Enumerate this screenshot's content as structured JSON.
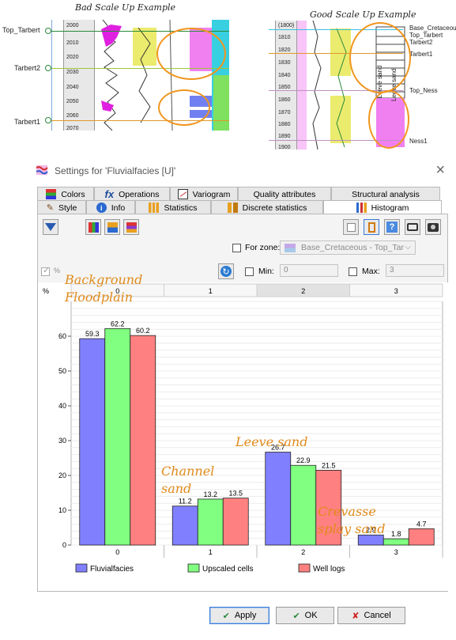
{
  "examples": {
    "bad": {
      "caption": "Bad Scale Up Example",
      "depths": [
        "2000",
        "2010",
        "2020",
        "2030",
        "2040",
        "2050",
        "2060",
        "2070"
      ],
      "markers": [
        "Top_Tarbert",
        "Tarbert2",
        "Tarbert1"
      ]
    },
    "good": {
      "caption": "Good Scale Up Example",
      "depths": [
        "(1800)",
        "1810",
        "1820",
        "1830",
        "1840",
        "1850",
        "1860",
        "1870",
        "1880",
        "1890",
        "1900"
      ],
      "markers": [
        "Base_Cretaceous",
        "Top_Tarbert",
        "Tarbert2",
        "Tarbert1",
        "Top_Ness",
        "Ness1"
      ],
      "track_labels": [
        "Leeve sand",
        "Leeve sand"
      ]
    }
  },
  "dialog": {
    "title": "Settings for 'Fluvialfacies [U]'",
    "tabs_row1": [
      "Colors",
      "Operations",
      "Variogram",
      "Quality attributes",
      "Structural analysis"
    ],
    "tabs_row2": [
      "Style",
      "Info",
      "Statistics",
      "Discrete statistics",
      "Histogram"
    ],
    "active_tab": "Histogram",
    "for_zone_label": "For zone:",
    "zone_value": "Base_Cretaceous - Top_Tar",
    "percent_label": "%",
    "min_label": "Min:",
    "min_value": "0",
    "max_label": "Max:",
    "max_value": "3",
    "buttons": {
      "apply": "Apply",
      "ok": "OK",
      "cancel": "Cancel"
    }
  },
  "annotations": {
    "background": "Background Floodplain",
    "channel": "Channel sand",
    "leeve": "Leeve sand",
    "crevasse": "Crevasse splay sand"
  },
  "chart_data": {
    "type": "bar",
    "categories": [
      "0",
      "1",
      "2",
      "3"
    ],
    "series": [
      {
        "name": "Fluvialfacies",
        "values": [
          59.3,
          11.2,
          26.7,
          2.9
        ],
        "color": "#8080ff"
      },
      {
        "name": "Upscaled cells",
        "values": [
          62.2,
          13.2,
          22.9,
          1.8
        ],
        "color": "#80ff80"
      },
      {
        "name": "Well logs",
        "values": [
          60.2,
          13.5,
          21.5,
          4.7
        ],
        "color": "#ff8080"
      }
    ],
    "ylabel": "%",
    "ylim": [
      0,
      70
    ],
    "yticks": [
      0,
      10,
      20,
      30,
      40,
      50,
      60
    ],
    "grid": true,
    "legend_placement": "bottom"
  }
}
